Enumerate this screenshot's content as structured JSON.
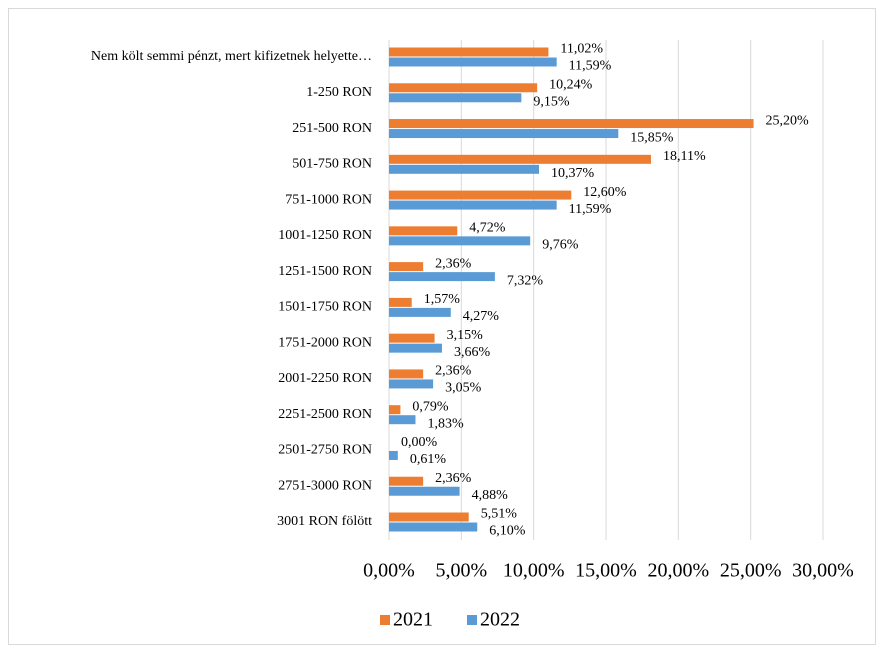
{
  "chart_data": {
    "type": "hbar",
    "categories": [
      "Nem költ semmi pénzt, mert kifizetnek helyette…",
      "1-250 RON",
      "251-500 RON",
      "501-750 RON",
      "751-1000 RON",
      "1001-1250 RON",
      "1251-1500 RON",
      "1501-1750 RON",
      "1751-2000 RON",
      "2001-2250 RON",
      "2251-2500 RON",
      "2501-2750 RON",
      "2751-3000 RON",
      "3001 RON fölött"
    ],
    "series": [
      {
        "name": "2021",
        "color": "#ed7d31",
        "values": [
          11.02,
          10.24,
          25.2,
          18.11,
          12.6,
          4.72,
          2.36,
          1.57,
          3.15,
          2.36,
          0.79,
          0.0,
          2.36,
          5.51
        ],
        "value_labels": [
          "11,02%",
          "10,24%",
          "25,20%",
          "18,11%",
          "12,60%",
          "4,72%",
          "2,36%",
          "1,57%",
          "3,15%",
          "2,36%",
          "0,79%",
          "0,00%",
          "2,36%",
          "5,51%"
        ]
      },
      {
        "name": "2022",
        "color": "#5b9bd5",
        "values": [
          11.59,
          9.15,
          15.85,
          10.37,
          11.59,
          9.76,
          7.32,
          4.27,
          3.66,
          3.05,
          1.83,
          0.61,
          4.88,
          6.1
        ],
        "value_labels": [
          "11,59%",
          "9,15%",
          "15,85%",
          "10,37%",
          "11,59%",
          "9,76%",
          "7,32%",
          "4,27%",
          "3,66%",
          "3,05%",
          "1,83%",
          "0,61%",
          "4,88%",
          "6,10%"
        ]
      }
    ],
    "xlim": [
      0,
      30
    ],
    "xticks": [
      {
        "value": 0,
        "label": "0,00%"
      },
      {
        "value": 5,
        "label": "5,00%"
      },
      {
        "value": 10,
        "label": "10,00%"
      },
      {
        "value": 15,
        "label": "15,00%"
      },
      {
        "value": 20,
        "label": "20,00%"
      },
      {
        "value": 25,
        "label": "25,00%"
      },
      {
        "value": 30,
        "label": "30,00%"
      }
    ],
    "grid": true,
    "legend": "bottom"
  }
}
